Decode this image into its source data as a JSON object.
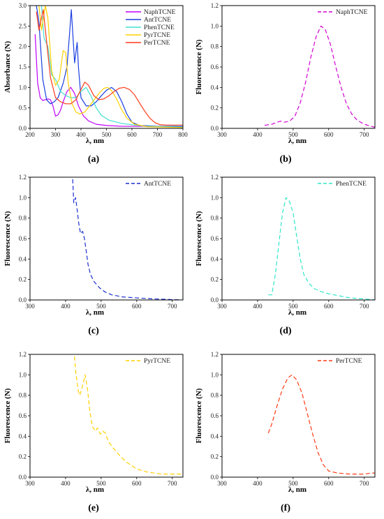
{
  "chart_data": [
    {
      "panel": "(a)",
      "type": "line",
      "xlabel": "λ, nm",
      "ylabel": "Absorbance (N)",
      "xlim": [
        200,
        800
      ],
      "ylim": [
        0,
        3.0
      ],
      "xticks": [
        200,
        300,
        400,
        500,
        600,
        700,
        800
      ],
      "yticks": [
        0.0,
        0.5,
        1.0,
        1.5,
        2.0,
        2.5,
        3.0
      ],
      "legend": "top-right",
      "series": [
        {
          "name": "NaphTCNE",
          "color": "#c000ff",
          "dashed": false,
          "points": [
            [
              220,
              2.3
            ],
            [
              230,
              1.1
            ],
            [
              240,
              0.75
            ],
            [
              250,
              0.68
            ],
            [
              260,
              0.7
            ],
            [
              270,
              0.72
            ],
            [
              280,
              0.7
            ],
            [
              290,
              0.55
            ],
            [
              300,
              0.3
            ],
            [
              310,
              0.33
            ],
            [
              320,
              0.45
            ],
            [
              330,
              0.65
            ],
            [
              345,
              0.9
            ],
            [
              360,
              1.0
            ],
            [
              375,
              0.85
            ],
            [
              390,
              0.55
            ],
            [
              410,
              0.3
            ],
            [
              430,
              0.18
            ],
            [
              460,
              0.1
            ],
            [
              500,
              0.07
            ],
            [
              560,
              0.05
            ],
            [
              650,
              0.05
            ],
            [
              800,
              0.05
            ]
          ]
        },
        {
          "name": "AntTCNE",
          "color": "#1a3fe0",
          "dashed": false,
          "points": [
            [
              225,
              3.0
            ],
            [
              235,
              2.6
            ],
            [
              250,
              1.2
            ],
            [
              265,
              0.7
            ],
            [
              280,
              0.6
            ],
            [
              295,
              0.65
            ],
            [
              310,
              0.75
            ],
            [
              330,
              1.1
            ],
            [
              345,
              1.5
            ],
            [
              355,
              2.3
            ],
            [
              362,
              2.9
            ],
            [
              368,
              2.3
            ],
            [
              375,
              1.6
            ],
            [
              385,
              2.1
            ],
            [
              390,
              1.5
            ],
            [
              400,
              0.75
            ],
            [
              420,
              0.55
            ],
            [
              440,
              0.55
            ],
            [
              460,
              0.65
            ],
            [
              480,
              0.8
            ],
            [
              500,
              0.93
            ],
            [
              520,
              1.0
            ],
            [
              540,
              0.9
            ],
            [
              560,
              0.65
            ],
            [
              580,
              0.35
            ],
            [
              600,
              0.15
            ],
            [
              630,
              0.07
            ],
            [
              700,
              0.05
            ],
            [
              800,
              0.05
            ]
          ]
        },
        {
          "name": "PhenTCNE",
          "color": "#40e0d0",
          "dashed": false,
          "points": [
            [
              245,
              3.0
            ],
            [
              255,
              2.2
            ],
            [
              270,
              2.0
            ],
            [
              285,
              1.3
            ],
            [
              300,
              1.2
            ],
            [
              320,
              0.9
            ],
            [
              340,
              0.8
            ],
            [
              360,
              0.75
            ],
            [
              380,
              0.75
            ],
            [
              400,
              0.9
            ],
            [
              420,
              1.0
            ],
            [
              440,
              0.78
            ],
            [
              460,
              0.5
            ],
            [
              480,
              0.32
            ],
            [
              510,
              0.2
            ],
            [
              560,
              0.12
            ],
            [
              650,
              0.05
            ],
            [
              800,
              0.03
            ]
          ]
        },
        {
          "name": "PyrTCNE",
          "color": "#ffd000",
          "dashed": false,
          "points": [
            [
              235,
              3.0
            ],
            [
              245,
              2.4
            ],
            [
              260,
              3.0
            ],
            [
              270,
              2.7
            ],
            [
              285,
              1.4
            ],
            [
              300,
              1.05
            ],
            [
              315,
              1.2
            ],
            [
              330,
              1.9
            ],
            [
              340,
              1.85
            ],
            [
              350,
              1.1
            ],
            [
              365,
              0.6
            ],
            [
              380,
              0.4
            ],
            [
              395,
              0.35
            ],
            [
              415,
              0.4
            ],
            [
              440,
              0.6
            ],
            [
              470,
              0.85
            ],
            [
              490,
              0.98
            ],
            [
              505,
              1.0
            ],
            [
              520,
              0.92
            ],
            [
              540,
              0.72
            ],
            [
              560,
              0.45
            ],
            [
              580,
              0.25
            ],
            [
              610,
              0.1
            ],
            [
              660,
              0.04
            ],
            [
              800,
              0.02
            ]
          ]
        },
        {
          "name": "PerTCNE",
          "color": "#ff3a1a",
          "dashed": false,
          "points": [
            [
              225,
              2.85
            ],
            [
              235,
              2.4
            ],
            [
              245,
              2.7
            ],
            [
              252,
              2.9
            ],
            [
              262,
              2.3
            ],
            [
              280,
              1.25
            ],
            [
              300,
              0.75
            ],
            [
              320,
              0.65
            ],
            [
              340,
              0.6
            ],
            [
              360,
              0.6
            ],
            [
              380,
              0.7
            ],
            [
              400,
              0.95
            ],
            [
              415,
              1.13
            ],
            [
              430,
              1.05
            ],
            [
              450,
              0.8
            ],
            [
              470,
              0.7
            ],
            [
              490,
              0.72
            ],
            [
              510,
              0.8
            ],
            [
              530,
              0.9
            ],
            [
              550,
              0.98
            ],
            [
              570,
              1.0
            ],
            [
              590,
              0.95
            ],
            [
              610,
              0.82
            ],
            [
              630,
              0.62
            ],
            [
              650,
              0.42
            ],
            [
              670,
              0.25
            ],
            [
              690,
              0.14
            ],
            [
              710,
              0.09
            ],
            [
              740,
              0.08
            ],
            [
              800,
              0.08
            ]
          ]
        }
      ]
    },
    {
      "panel": "(b)",
      "type": "line",
      "xlabel": "λ, nm",
      "ylabel": "Fluorescence (N)",
      "xlim": [
        300,
        730
      ],
      "ylim": [
        0,
        1.2
      ],
      "xticks": [
        300,
        400,
        500,
        600,
        700
      ],
      "yticks": [
        0.0,
        0.2,
        0.4,
        0.6,
        0.8,
        1.0,
        1.2
      ],
      "legend": "top-right",
      "series": [
        {
          "name": "NaphTCNE",
          "color": "#d400d4",
          "dashed": true,
          "points": [
            [
              420,
              0.03
            ],
            [
              440,
              0.04
            ],
            [
              455,
              0.06
            ],
            [
              465,
              0.07
            ],
            [
              475,
              0.06
            ],
            [
              490,
              0.07
            ],
            [
              505,
              0.12
            ],
            [
              520,
              0.25
            ],
            [
              535,
              0.45
            ],
            [
              550,
              0.7
            ],
            [
              565,
              0.9
            ],
            [
              578,
              1.0
            ],
            [
              590,
              0.97
            ],
            [
              605,
              0.82
            ],
            [
              620,
              0.6
            ],
            [
              635,
              0.4
            ],
            [
              650,
              0.24
            ],
            [
              665,
              0.14
            ],
            [
              680,
              0.08
            ],
            [
              700,
              0.04
            ],
            [
              720,
              0.02
            ],
            [
              730,
              0.01
            ]
          ]
        }
      ]
    },
    {
      "panel": "(c)",
      "type": "line",
      "xlabel": "λ, nm",
      "ylabel": "Fluorescence (N)",
      "xlim": [
        300,
        730
      ],
      "ylim": [
        0,
        1.2
      ],
      "xticks": [
        300,
        400,
        500,
        600,
        700
      ],
      "yticks": [
        0.0,
        0.2,
        0.4,
        0.6,
        0.8,
        1.0,
        1.2
      ],
      "legend": "top-right",
      "series": [
        {
          "name": "AntTCNE",
          "color": "#1a2fd0",
          "dashed": true,
          "points": [
            [
              420,
              1.18
            ],
            [
              423,
              0.95
            ],
            [
              428,
              1.0
            ],
            [
              432,
              0.9
            ],
            [
              437,
              0.75
            ],
            [
              442,
              0.65
            ],
            [
              448,
              0.67
            ],
            [
              453,
              0.6
            ],
            [
              458,
              0.48
            ],
            [
              463,
              0.35
            ],
            [
              470,
              0.25
            ],
            [
              480,
              0.18
            ],
            [
              495,
              0.12
            ],
            [
              510,
              0.08
            ],
            [
              530,
              0.05
            ],
            [
              560,
              0.03
            ],
            [
              600,
              0.02
            ],
            [
              650,
              0.01
            ],
            [
              730,
              0.0
            ]
          ]
        }
      ]
    },
    {
      "panel": "(d)",
      "type": "line",
      "xlabel": "λ, nm",
      "ylabel": "Fluorescence (N)",
      "xlim": [
        300,
        730
      ],
      "ylim": [
        0,
        1.2
      ],
      "xticks": [
        300,
        400,
        500,
        600,
        700
      ],
      "yticks": [
        0.0,
        0.2,
        0.4,
        0.6,
        0.8,
        1.0,
        1.2
      ],
      "legend": "top-right",
      "series": [
        {
          "name": "PhenTCNE",
          "color": "#2ee6c8",
          "dashed": true,
          "points": [
            [
              430,
              0.05
            ],
            [
              440,
              0.05
            ],
            [
              450,
              0.25
            ],
            [
              460,
              0.55
            ],
            [
              470,
              0.85
            ],
            [
              480,
              1.0
            ],
            [
              490,
              0.96
            ],
            [
              500,
              0.85
            ],
            [
              510,
              0.62
            ],
            [
              520,
              0.4
            ],
            [
              530,
              0.25
            ],
            [
              545,
              0.16
            ],
            [
              560,
              0.11
            ],
            [
              580,
              0.08
            ],
            [
              600,
              0.06
            ],
            [
              630,
              0.04
            ],
            [
              660,
              0.02
            ],
            [
              700,
              0.01
            ],
            [
              730,
              0.0
            ]
          ]
        }
      ]
    },
    {
      "panel": "(e)",
      "type": "line",
      "xlabel": "λ, nm",
      "ylabel": "Fluorescence (N)",
      "xlim": [
        300,
        730
      ],
      "ylim": [
        0,
        1.2
      ],
      "xticks": [
        300,
        400,
        500,
        600,
        700
      ],
      "yticks": [
        0.0,
        0.2,
        0.4,
        0.6,
        0.8,
        1.0,
        1.2
      ],
      "legend": "top-right",
      "series": [
        {
          "name": "PyrTCNE",
          "color": "#ffd000",
          "dashed": true,
          "points": [
            [
              425,
              1.18
            ],
            [
              428,
              1.05
            ],
            [
              435,
              0.85
            ],
            [
              440,
              0.8
            ],
            [
              447,
              0.88
            ],
            [
              455,
              1.0
            ],
            [
              462,
              0.85
            ],
            [
              468,
              0.65
            ],
            [
              475,
              0.5
            ],
            [
              483,
              0.45
            ],
            [
              490,
              0.48
            ],
            [
              498,
              0.42
            ],
            [
              505,
              0.45
            ],
            [
              512,
              0.43
            ],
            [
              520,
              0.35
            ],
            [
              535,
              0.28
            ],
            [
              550,
              0.22
            ],
            [
              570,
              0.15
            ],
            [
              600,
              0.08
            ],
            [
              630,
              0.05
            ],
            [
              670,
              0.03
            ],
            [
              730,
              0.03
            ]
          ]
        }
      ]
    },
    {
      "panel": "(f)",
      "type": "line",
      "xlabel": "λ, nm",
      "ylabel": "Fluorescence (N)",
      "xlim": [
        300,
        730
      ],
      "ylim": [
        0,
        1.2
      ],
      "xticks": [
        300,
        400,
        500,
        600,
        700
      ],
      "yticks": [
        0.0,
        0.2,
        0.4,
        0.6,
        0.8,
        1.0,
        1.2
      ],
      "legend": "top-right",
      "series": [
        {
          "name": "PerTCNE",
          "color": "#ff3a14",
          "dashed": true,
          "points": [
            [
              430,
              0.43
            ],
            [
              440,
              0.52
            ],
            [
              455,
              0.7
            ],
            [
              470,
              0.86
            ],
            [
              485,
              0.97
            ],
            [
              497,
              1.0
            ],
            [
              510,
              0.95
            ],
            [
              525,
              0.82
            ],
            [
              540,
              0.62
            ],
            [
              555,
              0.42
            ],
            [
              570,
              0.24
            ],
            [
              585,
              0.12
            ],
            [
              600,
              0.06
            ],
            [
              625,
              0.04
            ],
            [
              660,
              0.03
            ],
            [
              700,
              0.03
            ],
            [
              720,
              0.04
            ],
            [
              730,
              0.04
            ]
          ]
        }
      ]
    }
  ]
}
